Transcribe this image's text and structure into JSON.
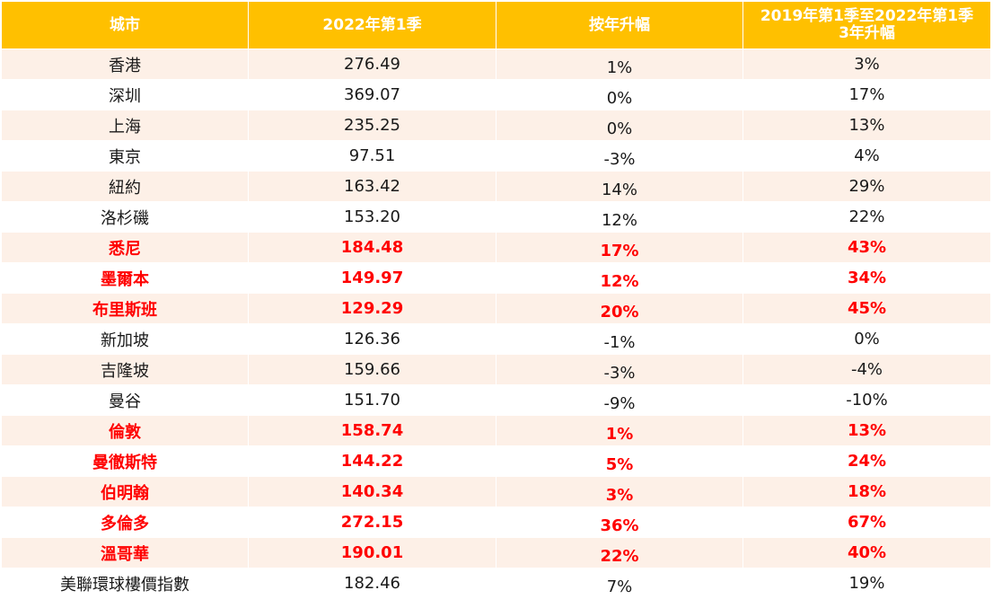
{
  "headers": [
    "城市",
    "2022年第1季",
    "按年升幅",
    "2019年第1季至2022年第1季\n3年升幅"
  ],
  "rows": [
    {
      "city": "香港",
      "index": "276.49",
      "yoy": "1%",
      "three_year": "3%",
      "highlight": false
    },
    {
      "city": "深圳",
      "index": "369.07",
      "yoy": "0%",
      "three_year": "17%",
      "highlight": false
    },
    {
      "city": "上海",
      "index": "235.25",
      "yoy": "0%",
      "three_year": "13%",
      "highlight": false
    },
    {
      "city": "東京",
      "index": "97.51",
      "yoy": "-3%",
      "three_year": "4%",
      "highlight": false
    },
    {
      "city": "紐約",
      "index": "163.42",
      "yoy": "14%",
      "three_year": "29%",
      "highlight": false
    },
    {
      "city": "洛杉磯",
      "index": "153.20",
      "yoy": "12%",
      "three_year": "22%",
      "highlight": false
    },
    {
      "city": "悉尼",
      "index": "184.48",
      "yoy": "17%",
      "three_year": "43%",
      "highlight": true
    },
    {
      "city": "墨爾本",
      "index": "149.97",
      "yoy": "12%",
      "three_year": "34%",
      "highlight": true
    },
    {
      "city": "布里斯班",
      "index": "129.29",
      "yoy": "20%",
      "three_year": "45%",
      "highlight": true
    },
    {
      "city": "新加坡",
      "index": "126.36",
      "yoy": "-1%",
      "three_year": "0%",
      "highlight": false
    },
    {
      "city": "吉隆坡",
      "index": "159.66",
      "yoy": "-3%",
      "three_year": "-4%",
      "highlight": false
    },
    {
      "city": "曼谷",
      "index": "151.70",
      "yoy": "-9%",
      "three_year": "-10%",
      "highlight": false
    },
    {
      "city": "倫敦",
      "index": "158.74",
      "yoy": "1%",
      "three_year": "13%",
      "highlight": true
    },
    {
      "city": "曼徹斯特",
      "index": "144.22",
      "yoy": "5%",
      "three_year": "24%",
      "highlight": true
    },
    {
      "city": "伯明翰",
      "index": "140.34",
      "yoy": "3%",
      "three_year": "18%",
      "highlight": true
    },
    {
      "city": "多倫多",
      "index": "272.15",
      "yoy": "36%",
      "three_year": "67%",
      "highlight": true
    },
    {
      "city": "溫哥華",
      "index": "190.01",
      "yoy": "22%",
      "three_year": "40%",
      "highlight": true
    },
    {
      "city": "美聯環球樓價指數",
      "index": "182.46",
      "yoy": "7%",
      "three_year": "19%",
      "highlight": false
    }
  ],
  "colors": {
    "header_bg": "#FFC000",
    "header_text": "#FFFFFF",
    "band": "#FDF0E7",
    "highlight_text": "#FF0000",
    "text": "#1A1A1A"
  }
}
